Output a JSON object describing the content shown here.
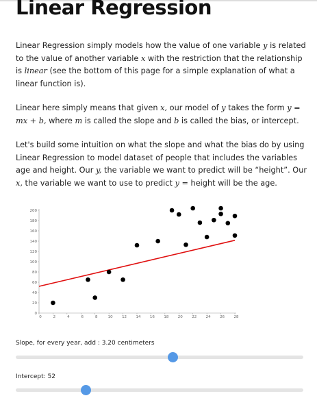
{
  "header": {
    "title": "Linear Regression"
  },
  "paragraphs": [
    [
      {
        "text": "Linear Regression simply models how the value of one variable "
      },
      {
        "text": "y",
        "math": true
      },
      {
        "text": " is related to the value of another variable "
      },
      {
        "text": "x",
        "math": true
      },
      {
        "text": " with the restriction that the relationship is "
      },
      {
        "text": "linear",
        "math": true
      },
      {
        "text": " (see the bottom of this page for a simple explanation of what a linear function is)."
      }
    ],
    [
      {
        "text": "Linear here simply means that given "
      },
      {
        "text": "x,",
        "math": true
      },
      {
        "text": " our model of "
      },
      {
        "text": "y",
        "math": true
      },
      {
        "text": " takes the form "
      },
      {
        "text": "y = mx + b,",
        "math": true
      },
      {
        "text": " where "
      },
      {
        "text": "m",
        "math": true
      },
      {
        "text": " is called the slope and "
      },
      {
        "text": "b",
        "math": true
      },
      {
        "text": " is called the bias, or intercept."
      }
    ],
    [
      {
        "text": "Let's build some intuition on what the slope and what the bias do by using Linear Regression to model dataset of people that includes the variables age and height. Our "
      },
      {
        "text": "y,",
        "math": true
      },
      {
        "text": " the variable we want to predict will be “height”. Our "
      },
      {
        "text": "x,",
        "math": true
      },
      {
        "text": " the variable we want to use to predict "
      },
      {
        "text": "y =",
        "math": true
      },
      {
        "text": " height will be the age."
      }
    ]
  ],
  "chart_data": {
    "type": "scatter",
    "x": [
      2,
      7,
      8,
      10,
      12,
      14,
      17,
      19,
      20,
      21,
      22,
      23,
      24,
      25,
      26,
      26,
      27,
      28,
      28
    ],
    "values": [
      20,
      65,
      30,
      80,
      65,
      132,
      140,
      200,
      192,
      133,
      204,
      176,
      148,
      181,
      204,
      193,
      175,
      189,
      151
    ],
    "color": "#000000",
    "line_color": "#e01010",
    "slope": 3.2,
    "intercept": 52,
    "xlim": [
      0,
      28
    ],
    "xticks": [
      0,
      2,
      4,
      6,
      8,
      10,
      12,
      14,
      16,
      18,
      20,
      22,
      24,
      26,
      28
    ],
    "ylim": [
      0,
      200
    ],
    "yticks": [
      0,
      20,
      40,
      60,
      80,
      100,
      120,
      140,
      160,
      180,
      200
    ]
  },
  "controls": {
    "slope_label": "Slope, for every year, add : ",
    "slope_value": "3.20",
    "slope_unit": " centimeters",
    "intercept_label": "Intercept: ",
    "intercept_value": "52"
  }
}
